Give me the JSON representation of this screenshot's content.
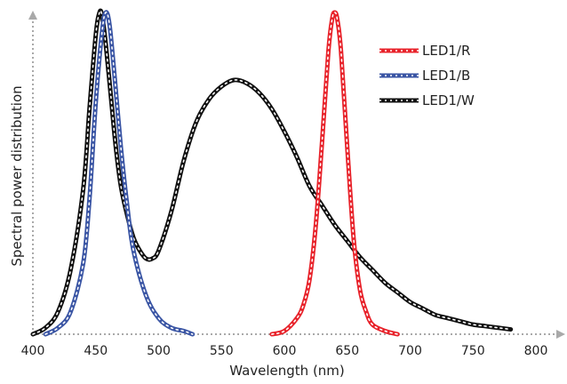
{
  "chart_data": {
    "type": "line",
    "xlabel": "Wavelength (nm)",
    "ylabel": "Spectral power distribution",
    "xlim": [
      400,
      800
    ],
    "ylim": [
      0,
      1
    ],
    "xticks": [
      "400",
      "450",
      "500",
      "550",
      "600",
      "650",
      "700",
      "750",
      "800"
    ],
    "grid": false,
    "legend_position": "top-right",
    "series": [
      {
        "name": "LED1/R",
        "color": "#e8232b",
        "x": [
          590,
          600,
          610,
          615,
          620,
          625,
          630,
          635,
          638,
          640,
          642,
          645,
          650,
          655,
          660,
          665,
          670,
          680,
          690
        ],
        "y": [
          0.0,
          0.01,
          0.05,
          0.09,
          0.17,
          0.34,
          0.6,
          0.88,
          0.98,
          1.0,
          0.98,
          0.88,
          0.58,
          0.3,
          0.14,
          0.07,
          0.03,
          0.01,
          0.0
        ]
      },
      {
        "name": "LED1/B",
        "color": "#3a55a4",
        "x": [
          410,
          420,
          430,
          440,
          445,
          450,
          455,
          458,
          461,
          465,
          470,
          475,
          480,
          490,
          500,
          510,
          520,
          527
        ],
        "y": [
          0.0,
          0.02,
          0.07,
          0.22,
          0.42,
          0.72,
          0.94,
          1.0,
          0.96,
          0.8,
          0.58,
          0.4,
          0.26,
          0.12,
          0.05,
          0.02,
          0.01,
          0.0
        ]
      },
      {
        "name": "LED1/W",
        "color": "#111111",
        "x": [
          400,
          410,
          420,
          430,
          440,
          445,
          450,
          453,
          455,
          458,
          462,
          466,
          470,
          475,
          480,
          485,
          490,
          495,
          500,
          510,
          520,
          530,
          540,
          550,
          560,
          570,
          580,
          590,
          600,
          610,
          620,
          630,
          640,
          650,
          660,
          670,
          680,
          690,
          700,
          710,
          720,
          730,
          740,
          750,
          760,
          770,
          780
        ],
        "y": [
          0.0,
          0.02,
          0.07,
          0.2,
          0.45,
          0.7,
          0.93,
          1.0,
          0.99,
          0.9,
          0.74,
          0.58,
          0.46,
          0.37,
          0.3,
          0.26,
          0.235,
          0.235,
          0.26,
          0.38,
          0.54,
          0.66,
          0.73,
          0.77,
          0.79,
          0.78,
          0.75,
          0.7,
          0.63,
          0.55,
          0.46,
          0.4,
          0.34,
          0.29,
          0.24,
          0.2,
          0.16,
          0.13,
          0.1,
          0.08,
          0.06,
          0.05,
          0.04,
          0.03,
          0.025,
          0.02,
          0.015
        ]
      }
    ]
  }
}
